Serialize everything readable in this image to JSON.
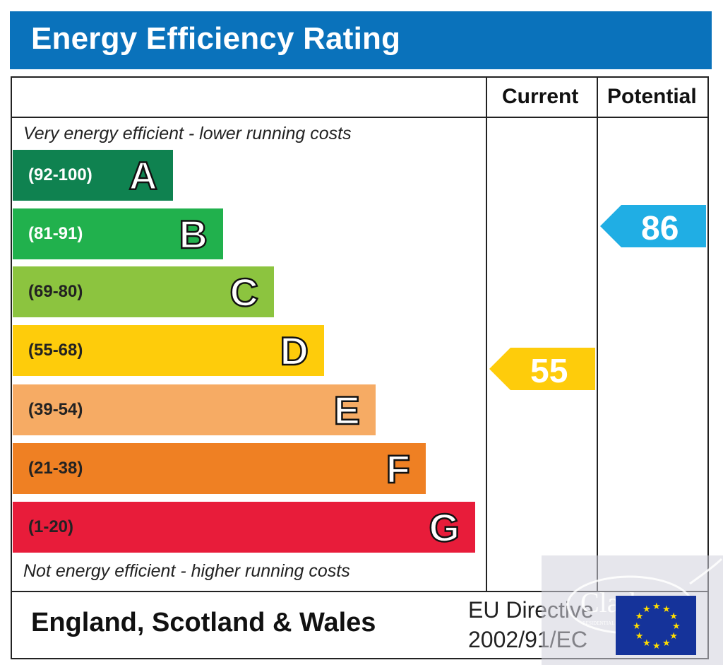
{
  "title": "Energy Efficiency Rating",
  "columns": {
    "current": "Current",
    "potential": "Potential"
  },
  "notes": {
    "top": "Very energy efficient - lower running costs",
    "bottom": "Not energy efficient - higher running costs"
  },
  "footer": {
    "region": "England, Scotland & Wales",
    "directive_line1": "EU Directive",
    "directive_line2": "2002/91/EC"
  },
  "watermark": {
    "text": "Clarkes",
    "subtext": "RESIDENTIAL SALES & LETTINGS AGENCY"
  },
  "chart_data": {
    "type": "bar",
    "title": "Energy Efficiency Rating",
    "categories": [
      "A",
      "B",
      "C",
      "D",
      "E",
      "F",
      "G"
    ],
    "ranges": [
      "(92-100)",
      "(81-91)",
      "(69-80)",
      "(55-68)",
      "(39-54)",
      "(21-38)",
      "(1-20)"
    ],
    "colors": [
      "#0f8250",
      "#21b14d",
      "#8cc43f",
      "#fecc0b",
      "#f6ab64",
      "#ef8023",
      "#e81c3a"
    ],
    "range_text_colors": [
      "#ffffff",
      "#ffffff",
      "#222222",
      "#222222",
      "#222222",
      "#222222",
      "#222222"
    ],
    "current": {
      "value": 55,
      "band": "D",
      "color": "#fecc0b"
    },
    "potential": {
      "value": 86,
      "band": "B",
      "color": "#20aee4"
    }
  }
}
